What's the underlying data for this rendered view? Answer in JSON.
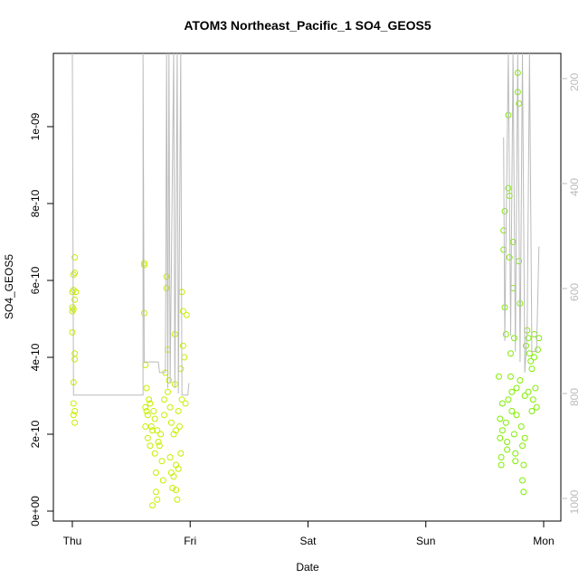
{
  "chart_data": {
    "type": "scatter",
    "title": "ATOM3 Northeast_Pacific_1 SO4_GEOS5",
    "x_label": "Date",
    "y_label": "SO4_GEOS5",
    "xlim": [
      -0.161,
      4.146
    ],
    "xticks": [
      {
        "value": 0,
        "label": "Thu"
      },
      {
        "value": 1,
        "label": "Fri"
      },
      {
        "value": 2,
        "label": "Sat"
      },
      {
        "value": 3,
        "label": "Sun"
      },
      {
        "value": 4,
        "label": "Mon"
      }
    ],
    "ylim": [
      -2.59e-11,
      1.1906e-09
    ],
    "yticks": [
      {
        "value": 0,
        "label": "0e+00"
      },
      {
        "value": 2e-10,
        "label": "2e-10"
      },
      {
        "value": 4e-10,
        "label": "4e-10"
      },
      {
        "value": 6e-10,
        "label": "6e-10"
      },
      {
        "value": 8e-10,
        "label": "8e-10"
      },
      {
        "value": 1e-09,
        "label": "1e-09"
      }
    ],
    "y2lim": [
      1043,
      152
    ],
    "y2ticks": [
      200,
      400,
      600,
      800,
      1000
    ],
    "y2_color": "#bbbbbb",
    "series": [
      {
        "color": "#c8ee00",
        "x": [
          0.0,
          0.01,
          0.0,
          0.02,
          0.02,
          0.01,
          0.0,
          0.02,
          0.02,
          0.01,
          0.01,
          0.02,
          0.01,
          0.02,
          0.03,
          0.02,
          0.0,
          0.01,
          0.61,
          0.61,
          0.61,
          0.62,
          0.62,
          0.63,
          0.63,
          0.64,
          0.62,
          0.64,
          0.65,
          0.66,
          0.67,
          0.68,
          0.69,
          0.7,
          0.7,
          0.71,
          0.71,
          0.72,
          0.73,
          0.74,
          0.75,
          0.76,
          0.77,
          0.78,
          0.79,
          0.8,
          0.8,
          0.81,
          0.81,
          0.82,
          0.83,
          0.83,
          0.84,
          0.85,
          0.86,
          0.86,
          0.87,
          0.87,
          0.88,
          0.88,
          0.89,
          0.9,
          0.91,
          0.92,
          0.92,
          0.93,
          0.93,
          0.94,
          0.94,
          0.95,
          0.96,
          0.97,
          0.66,
          0.72,
          0.78,
          0.84,
          0.9,
          0.68,
          0.88
        ],
        "values": [
          5.7e-10,
          5.25e-10,
          5.3e-10,
          6.6e-10,
          6.2e-10,
          6.15e-10,
          4.65e-10,
          4.1e-10,
          3.95e-10,
          3.35e-10,
          2.8e-10,
          2.6e-10,
          2.5e-10,
          2.3e-10,
          5.7e-10,
          5.5e-10,
          5.2e-10,
          5.75e-10,
          6.45e-10,
          6.4e-10,
          5.15e-10,
          3.8e-10,
          2.7e-10,
          2.6e-10,
          3.2e-10,
          2.5e-10,
          2.2e-10,
          1.9e-10,
          2.9e-10,
          2.8e-10,
          2.2e-10,
          2.1e-10,
          2.6e-10,
          2.4e-10,
          1.5e-10,
          1e-10,
          5e-11,
          3e-11,
          1.8e-10,
          1.7e-10,
          2e-10,
          1.3e-10,
          8e-11,
          2.9e-10,
          3.6e-10,
          5.8e-10,
          6.1e-10,
          4.2e-10,
          3.1e-10,
          3.4e-10,
          2.7e-10,
          1.4e-10,
          1e-10,
          6e-11,
          9e-11,
          2e-10,
          4.6e-10,
          3.3e-10,
          2.1e-10,
          1.2e-10,
          3e-11,
          2.6e-10,
          2.2e-10,
          1.5e-10,
          3.7e-10,
          2.9e-10,
          5.7e-10,
          4.3e-10,
          5.2e-10,
          4e-10,
          2.8e-10,
          5.1e-10,
          1.7e-10,
          2.1e-10,
          2.5e-10,
          2.3e-10,
          1.1e-10,
          1.5e-11,
          5.5e-11
        ]
      },
      {
        "color": "#80ee00",
        "x": [
          3.62,
          3.63,
          3.63,
          3.64,
          3.64,
          3.65,
          3.66,
          3.66,
          3.67,
          3.67,
          3.68,
          3.68,
          3.69,
          3.69,
          3.7,
          3.7,
          3.71,
          3.71,
          3.72,
          3.72,
          3.73,
          3.73,
          3.74,
          3.74,
          3.75,
          3.75,
          3.76,
          3.76,
          3.77,
          3.78,
          3.78,
          3.79,
          3.79,
          3.8,
          3.8,
          3.81,
          3.82,
          3.82,
          3.83,
          3.84,
          3.84,
          3.85,
          3.86,
          3.87,
          3.88,
          3.89,
          3.9,
          3.91,
          3.92,
          3.92,
          3.93,
          3.94,
          3.95,
          3.96,
          3.65,
          3.7,
          3.77,
          3.83,
          3.87,
          3.9
        ],
        "values": [
          3.5e-10,
          2.4e-10,
          1.9e-10,
          1.4e-10,
          1.2e-10,
          2.1e-10,
          7.3e-10,
          6.8e-10,
          7.8e-10,
          5.3e-10,
          4.6e-10,
          2.3e-10,
          1.8e-10,
          1.6e-10,
          1.03e-09,
          8.4e-10,
          8.2e-10,
          6.6e-10,
          4.1e-10,
          3.5e-10,
          3.1e-10,
          2.6e-10,
          7e-10,
          5.8e-10,
          4.5e-10,
          2e-10,
          1.5e-10,
          1.3e-10,
          3.2e-10,
          1.14e-09,
          1.09e-09,
          1.06e-09,
          6.5e-10,
          5.4e-10,
          3.4e-10,
          2.2e-10,
          1.7e-10,
          8e-11,
          5e-11,
          1.9e-10,
          3e-10,
          4.3e-10,
          4.7e-10,
          4.5e-10,
          4.1e-10,
          3.9e-10,
          3.7e-10,
          2.9e-10,
          4.6e-10,
          4e-10,
          3.2e-10,
          2.7e-10,
          4.2e-10,
          4.5e-10,
          2.8e-10,
          2.9e-10,
          2.5e-10,
          1.2e-10,
          3.1e-10,
          2.6e-10
        ]
      },
      {
        "color": "#bbbbbb",
        "axis": "y2",
        "x": [
          0.0,
          0.01,
          0.6,
          0.6,
          0.61,
          0.73,
          0.74,
          0.79,
          0.8,
          0.81,
          0.82,
          0.83,
          0.86,
          0.87,
          0.89,
          0.9,
          0.92,
          0.93,
          0.98,
          0.99,
          0.27,
          3.66,
          3.67,
          3.7,
          3.72,
          3.74,
          3.76,
          3.78,
          3.8,
          3.82,
          3.84,
          3.86,
          3.88,
          3.9,
          3.94,
          3.96
        ],
        "values": [
          150,
          803,
          803,
          150,
          740,
          740,
          760,
          760,
          150,
          790,
          150,
          780,
          150,
          790,
          150,
          800,
          150,
          803,
          803,
          780,
          null,
          312,
          700,
          150,
          690,
          150,
          720,
          150,
          740,
          150,
          760,
          680,
          150,
          720,
          720,
          520
        ]
      }
    ]
  }
}
